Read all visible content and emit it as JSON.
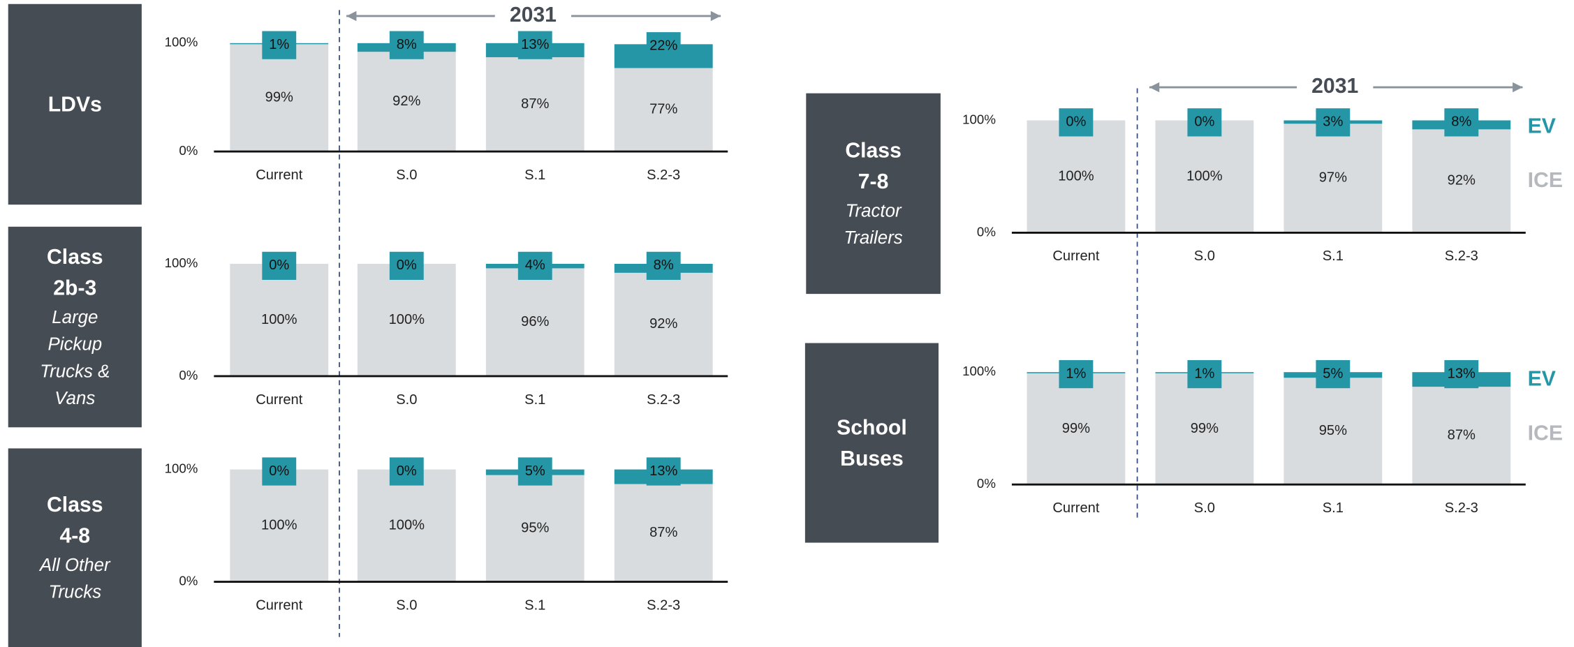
{
  "chart_data": [
    {
      "type": "bar",
      "stacked": true,
      "title": "LDVs",
      "annotation": "2031",
      "categories": [
        "Current",
        "S.0",
        "S.1",
        "S.2-3"
      ],
      "series": [
        {
          "color": "#d9dcdf",
          "values": [
            99,
            92,
            87,
            77
          ],
          "value_labels": [
            "99%",
            "92%",
            "87%",
            "77%"
          ]
        },
        {
          "color": "#2596a6",
          "values": [
            1,
            8,
            13,
            22
          ],
          "value_labels": [
            "1%",
            "8%",
            "13%",
            "22%"
          ]
        }
      ],
      "ylim": [
        0,
        100
      ],
      "yticks": [
        {
          "value": 0,
          "label": "0%"
        },
        {
          "value": 100,
          "label": "100%"
        }
      ],
      "grid": false
    },
    {
      "type": "bar",
      "stacked": true,
      "title": "Class 2b-3",
      "subtitle": "Large Pickup Trucks & Vans",
      "categories": [
        "Current",
        "S.0",
        "S.1",
        "S.2-3"
      ],
      "series": [
        {
          "color": "#d9dcdf",
          "values": [
            100,
            100,
            96,
            92
          ],
          "value_labels": [
            "100%",
            "100%",
            "96%",
            "92%"
          ]
        },
        {
          "color": "#2596a6",
          "values": [
            0,
            0,
            4,
            8
          ],
          "value_labels": [
            "0%",
            "0%",
            "4%",
            "8%"
          ]
        }
      ],
      "ylim": [
        0,
        100
      ],
      "yticks": [
        {
          "value": 0,
          "label": "0%"
        },
        {
          "value": 100,
          "label": "100%"
        }
      ],
      "grid": false
    },
    {
      "type": "bar",
      "stacked": true,
      "title": "Class 4-8",
      "subtitle": "All Other Trucks",
      "categories": [
        "Current",
        "S.0",
        "S.1",
        "S.2-3"
      ],
      "series": [
        {
          "color": "#d9dcdf",
          "values": [
            100,
            100,
            95,
            87
          ],
          "value_labels": [
            "100%",
            "100%",
            "95%",
            "87%"
          ]
        },
        {
          "color": "#2596a6",
          "values": [
            0,
            0,
            5,
            13
          ],
          "value_labels": [
            "0%",
            "0%",
            "5%",
            "13%"
          ]
        }
      ],
      "ylim": [
        0,
        100
      ],
      "yticks": [
        {
          "value": 0,
          "label": "0%"
        },
        {
          "value": 100,
          "label": "100%"
        }
      ],
      "grid": false
    },
    {
      "type": "bar",
      "stacked": true,
      "title": "Class 7-8",
      "subtitle": "Tractor Trailers",
      "annotation": "2031",
      "legend": "right",
      "categories": [
        "Current",
        "S.0",
        "S.1",
        "S.2-3"
      ],
      "series": [
        {
          "name": "ICE",
          "color": "#d9dcdf",
          "values": [
            100,
            100,
            97,
            92
          ],
          "value_labels": [
            "100%",
            "100%",
            "97%",
            "92%"
          ]
        },
        {
          "name": "EV",
          "color": "#2596a6",
          "values": [
            0,
            0,
            3,
            8
          ],
          "value_labels": [
            "0%",
            "0%",
            "3%",
            "8%"
          ]
        }
      ],
      "ylim": [
        0,
        100
      ],
      "yticks": [
        {
          "value": 0,
          "label": "0%"
        },
        {
          "value": 100,
          "label": "100%"
        }
      ],
      "grid": false
    },
    {
      "type": "bar",
      "stacked": true,
      "title": "School Buses",
      "legend": "right",
      "categories": [
        "Current",
        "S.0",
        "S.1",
        "S.2-3"
      ],
      "series": [
        {
          "name": "ICE",
          "color": "#d9dcdf",
          "values": [
            99,
            99,
            95,
            87
          ],
          "value_labels": [
            "99%",
            "99%",
            "95%",
            "87%"
          ]
        },
        {
          "name": "EV",
          "color": "#2596a6",
          "values": [
            1,
            1,
            5,
            13
          ],
          "value_labels": [
            "1%",
            "1%",
            "5%",
            "13%"
          ]
        }
      ],
      "ylim": [
        0,
        100
      ],
      "yticks": [
        {
          "value": 0,
          "label": "0%"
        },
        {
          "value": 100,
          "label": "100%"
        }
      ],
      "grid": false
    }
  ]
}
